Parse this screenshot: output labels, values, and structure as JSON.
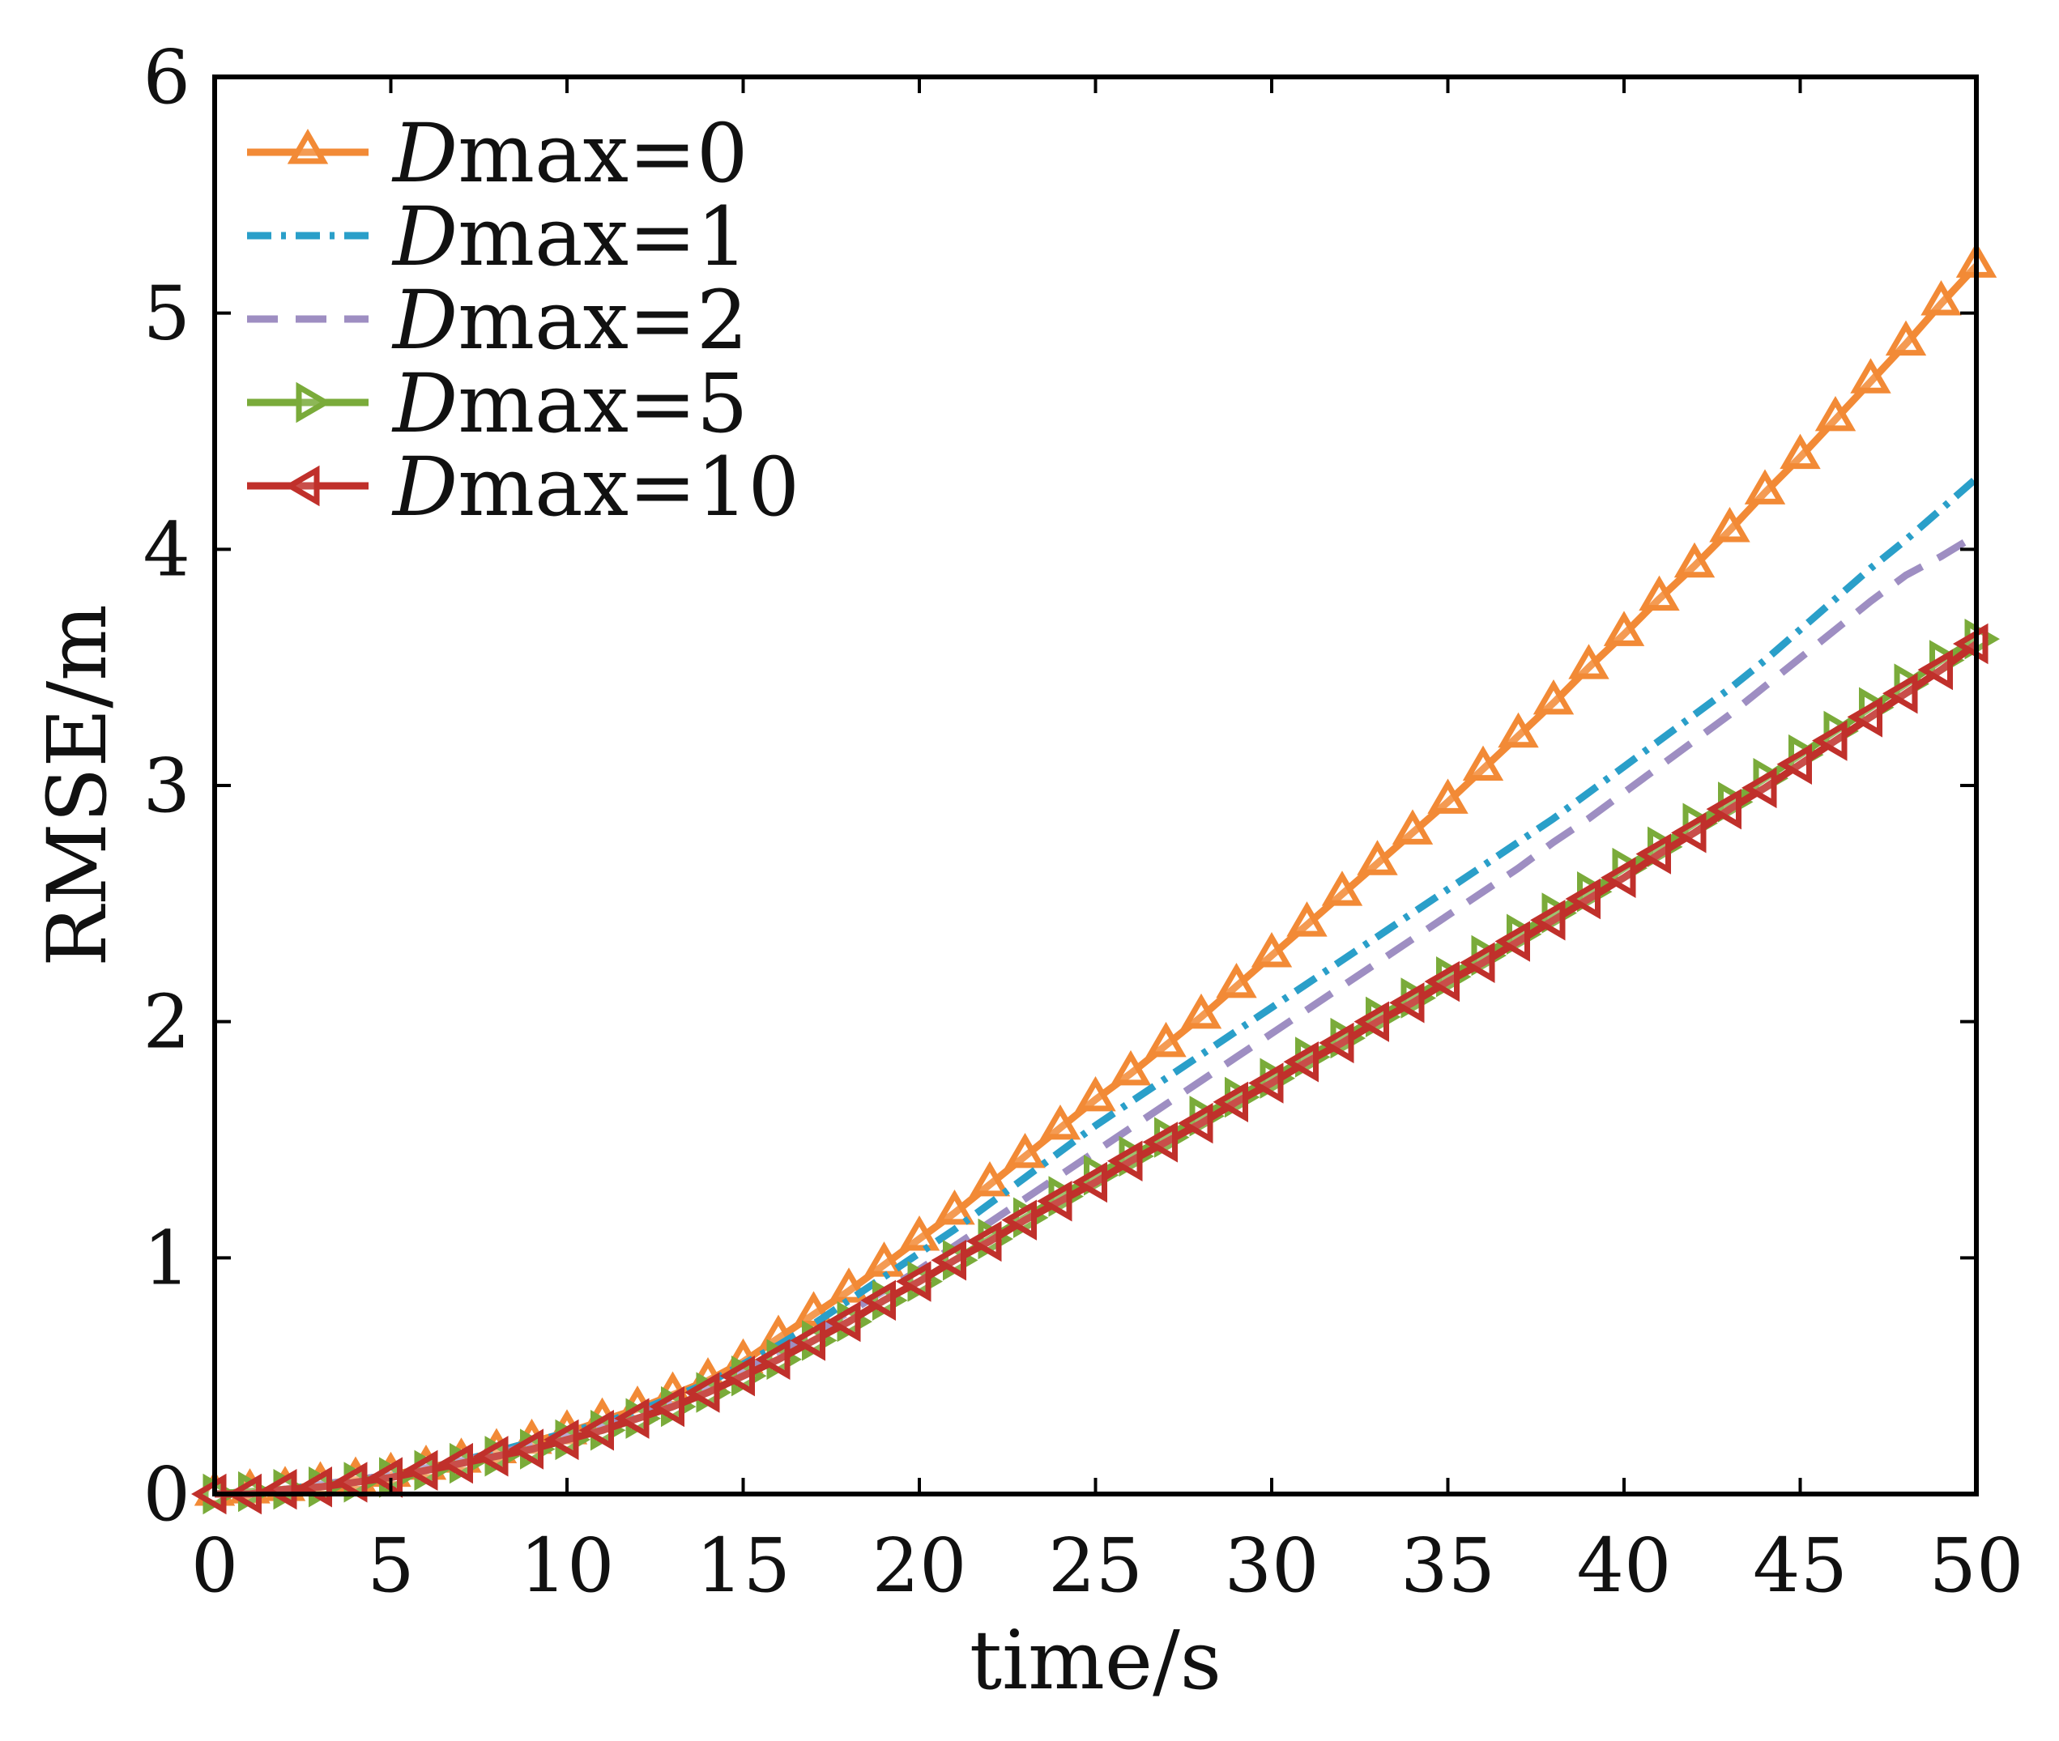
{
  "chart_data": {
    "type": "line",
    "title": "",
    "xlabel": "time/s",
    "ylabel": "RMSE/m",
    "xlim": [
      0,
      50
    ],
    "ylim": [
      0,
      6
    ],
    "xticks": [
      0,
      5,
      10,
      15,
      20,
      25,
      30,
      35,
      40,
      45,
      50
    ],
    "yticks": [
      0,
      1,
      2,
      3,
      4,
      5,
      6
    ],
    "x_tick_labels": [
      "0",
      "5",
      "10",
      "15",
      "20",
      "25",
      "30",
      "35",
      "40",
      "45",
      "50"
    ],
    "y_tick_labels": [
      "0",
      "1",
      "2",
      "3",
      "4",
      "5",
      "6"
    ],
    "grid": false,
    "legend_position": "top-left",
    "x": [
      0,
      1,
      2,
      3,
      4,
      5,
      6,
      7,
      8,
      9,
      10,
      11,
      12,
      13,
      14,
      15,
      16,
      17,
      18,
      19,
      20,
      21,
      22,
      23,
      24,
      25,
      26,
      27,
      28,
      29,
      30,
      31,
      32,
      33,
      34,
      35,
      36,
      37,
      38,
      39,
      40,
      41,
      42,
      43,
      44,
      45,
      46,
      47,
      48,
      49,
      50
    ],
    "series": [
      {
        "name": "Dmax=0",
        "legend_prefix": "D",
        "legend_suffix": "max=0",
        "color": "#f28a36",
        "line_style": "solid",
        "marker": "triangle-up",
        "values": [
          0.0,
          0.01,
          0.02,
          0.04,
          0.06,
          0.08,
          0.11,
          0.14,
          0.18,
          0.22,
          0.26,
          0.31,
          0.36,
          0.42,
          0.48,
          0.56,
          0.66,
          0.76,
          0.86,
          0.97,
          1.08,
          1.19,
          1.31,
          1.43,
          1.55,
          1.67,
          1.78,
          1.9,
          2.02,
          2.15,
          2.28,
          2.41,
          2.54,
          2.67,
          2.8,
          2.93,
          3.07,
          3.21,
          3.35,
          3.5,
          3.64,
          3.79,
          3.93,
          4.08,
          4.24,
          4.39,
          4.55,
          4.71,
          4.87,
          5.04,
          5.2
        ]
      },
      {
        "name": "Dmax=1",
        "legend_prefix": "D",
        "legend_suffix": "max=1",
        "color": "#2a9fc9",
        "line_style": "dashdot",
        "marker": "none",
        "values": [
          0.0,
          0.01,
          0.02,
          0.04,
          0.06,
          0.08,
          0.11,
          0.14,
          0.18,
          0.22,
          0.26,
          0.3,
          0.35,
          0.41,
          0.47,
          0.55,
          0.63,
          0.72,
          0.82,
          0.92,
          1.02,
          1.12,
          1.23,
          1.34,
          1.45,
          1.56,
          1.66,
          1.76,
          1.86,
          1.96,
          2.06,
          2.16,
          2.26,
          2.36,
          2.46,
          2.56,
          2.66,
          2.76,
          2.86,
          2.97,
          3.08,
          3.19,
          3.3,
          3.41,
          3.53,
          3.66,
          3.79,
          3.92,
          4.04,
          4.17,
          4.3
        ]
      },
      {
        "name": "Dmax=2",
        "legend_prefix": "D",
        "legend_suffix": "max=2",
        "color": "#9e8ec2",
        "line_style": "dashed",
        "marker": "none",
        "values": [
          0.0,
          0.01,
          0.02,
          0.04,
          0.06,
          0.08,
          0.11,
          0.14,
          0.17,
          0.21,
          0.25,
          0.29,
          0.34,
          0.39,
          0.45,
          0.52,
          0.6,
          0.68,
          0.77,
          0.86,
          0.95,
          1.05,
          1.15,
          1.25,
          1.35,
          1.45,
          1.55,
          1.65,
          1.75,
          1.85,
          1.95,
          2.05,
          2.15,
          2.25,
          2.35,
          2.45,
          2.55,
          2.65,
          2.76,
          2.86,
          2.97,
          3.08,
          3.19,
          3.3,
          3.42,
          3.54,
          3.66,
          3.78,
          3.89,
          3.97,
          4.06
        ]
      },
      {
        "name": "Dmax=5",
        "legend_prefix": "D",
        "legend_suffix": "max=5",
        "color": "#7aab3a",
        "line_style": "solid",
        "marker": "triangle-right",
        "values": [
          0.0,
          0.01,
          0.02,
          0.03,
          0.05,
          0.07,
          0.1,
          0.13,
          0.16,
          0.19,
          0.23,
          0.27,
          0.32,
          0.37,
          0.43,
          0.5,
          0.57,
          0.65,
          0.73,
          0.82,
          0.9,
          0.99,
          1.08,
          1.17,
          1.26,
          1.35,
          1.43,
          1.51,
          1.6,
          1.68,
          1.76,
          1.85,
          1.93,
          2.02,
          2.1,
          2.19,
          2.28,
          2.37,
          2.46,
          2.55,
          2.65,
          2.74,
          2.84,
          2.93,
          3.03,
          3.13,
          3.23,
          3.33,
          3.43,
          3.53,
          3.62
        ]
      },
      {
        "name": "Dmax=10",
        "legend_prefix": "D",
        "legend_suffix": "max=10",
        "color": "#c0302b",
        "line_style": "solid",
        "marker": "triangle-left",
        "values": [
          0.0,
          0.0,
          0.02,
          0.03,
          0.05,
          0.07,
          0.1,
          0.13,
          0.16,
          0.19,
          0.23,
          0.27,
          0.32,
          0.37,
          0.43,
          0.5,
          0.57,
          0.65,
          0.73,
          0.82,
          0.9,
          0.99,
          1.07,
          1.16,
          1.24,
          1.32,
          1.41,
          1.49,
          1.57,
          1.66,
          1.74,
          1.83,
          1.91,
          2.0,
          2.08,
          2.17,
          2.25,
          2.34,
          2.43,
          2.52,
          2.61,
          2.71,
          2.8,
          2.9,
          2.99,
          3.09,
          3.19,
          3.29,
          3.39,
          3.49,
          3.6
        ]
      }
    ]
  }
}
